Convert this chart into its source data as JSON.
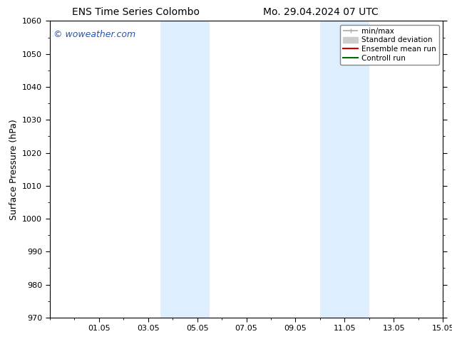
{
  "title_left": "ENS Time Series Colombo",
  "title_right": "Mo. 29.04.2024 07 UTC",
  "ylabel": "Surface Pressure (hPa)",
  "ylim": [
    970,
    1060
  ],
  "yticks": [
    970,
    980,
    990,
    1000,
    1010,
    1020,
    1030,
    1040,
    1050,
    1060
  ],
  "xlim": [
    0.0,
    16.0
  ],
  "xtick_positions": [
    2,
    4,
    6,
    8,
    10,
    12,
    14,
    16
  ],
  "xtick_labels": [
    "01.05",
    "03.05",
    "05.05",
    "07.05",
    "09.05",
    "11.05",
    "13.05",
    "15.05"
  ],
  "shaded_bands": [
    {
      "xmin": 4.5,
      "xmax": 6.5
    },
    {
      "xmin": 11.0,
      "xmax": 13.0
    }
  ],
  "shade_color": "#ddeeff",
  "background_color": "#ffffff",
  "watermark_text": "© woweather.com",
  "watermark_color": "#2255bb",
  "legend_entries": [
    {
      "label": "min/max",
      "color": "#aaaaaa",
      "lw": 1.2
    },
    {
      "label": "Standard deviation",
      "color": "#cccccc",
      "lw": 6
    },
    {
      "label": "Ensemble mean run",
      "color": "#cc0000",
      "lw": 1.5
    },
    {
      "label": "Controll run",
      "color": "#006600",
      "lw": 1.5
    }
  ],
  "spine_color": "#000000",
  "tick_color": "#000000",
  "title_fontsize": 10,
  "axis_label_fontsize": 9,
  "tick_fontsize": 8,
  "legend_fontsize": 7.5
}
